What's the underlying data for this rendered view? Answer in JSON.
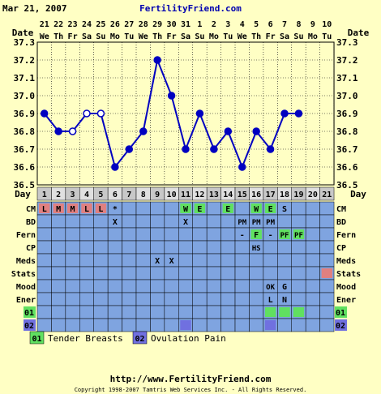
{
  "header": {
    "date": "Mar 21, 2007",
    "site": "FertilityFriend.com"
  },
  "axis_labels": {
    "date": "Date",
    "day": "Day"
  },
  "chart_data": {
    "type": "line",
    "x_dates": [
      "21",
      "22",
      "23",
      "24",
      "25",
      "26",
      "27",
      "28",
      "29",
      "30",
      "31",
      "1",
      "2",
      "3",
      "4",
      "5",
      "6",
      "7",
      "8",
      "9",
      "10"
    ],
    "x_weekdays": [
      "We",
      "Th",
      "Fr",
      "Sa",
      "Su",
      "Mo",
      "Tu",
      "We",
      "Th",
      "Fr",
      "Sa",
      "Su",
      "Mo",
      "Tu",
      "We",
      "Th",
      "Fr",
      "Sa",
      "Su",
      "Mo",
      "Tu"
    ],
    "days": [
      "1",
      "2",
      "3",
      "4",
      "5",
      "6",
      "7",
      "8",
      "9",
      "10",
      "11",
      "12",
      "13",
      "14",
      "15",
      "16",
      "17",
      "18",
      "19",
      "20",
      "21"
    ],
    "temps": [
      36.9,
      36.8,
      36.8,
      36.9,
      36.9,
      36.6,
      36.7,
      36.8,
      37.2,
      37.0,
      36.7,
      36.9,
      36.7,
      36.8,
      36.6,
      36.8,
      36.7,
      36.9,
      36.9,
      null,
      null
    ],
    "open_points": [
      2,
      3,
      4
    ],
    "connected_to_next": [
      true,
      true,
      true,
      true,
      true,
      true,
      true,
      true,
      true,
      true,
      true,
      true,
      true,
      true,
      true,
      true,
      true,
      true,
      false,
      false,
      false
    ],
    "y_ticks": [
      "36.5",
      "36.6",
      "36.7",
      "36.8",
      "36.9",
      "37.0",
      "37.1",
      "37.2",
      "37.3"
    ],
    "ylim": [
      36.5,
      37.3
    ],
    "grid": true,
    "line_color": "#0000c0"
  },
  "rows": [
    {
      "label": "CM",
      "cells": {
        "0": {
          "t": "L",
          "bg": "#e08080"
        },
        "1": {
          "t": "M",
          "bg": "#e08080"
        },
        "2": {
          "t": "M",
          "bg": "#e08080"
        },
        "3": {
          "t": "L",
          "bg": "#e08080"
        },
        "4": {
          "t": "L",
          "bg": "#e08080"
        },
        "5": {
          "t": "*"
        },
        "10": {
          "t": "W",
          "bg": "#60e060"
        },
        "11": {
          "t": "E",
          "bg": "#60e060"
        },
        "13": {
          "t": "E",
          "bg": "#60e060"
        },
        "15": {
          "t": "W",
          "bg": "#60e060"
        },
        "16": {
          "t": "E",
          "bg": "#60e060"
        },
        "17": {
          "t": "S"
        }
      }
    },
    {
      "label": "BD",
      "cells": {
        "5": {
          "t": "X"
        },
        "10": {
          "t": "X"
        },
        "14": {
          "t": "PM"
        },
        "15": {
          "t": "PM"
        },
        "16": {
          "t": "PM"
        }
      }
    },
    {
      "label": "Fern",
      "cells": {
        "14": {
          "t": "-"
        },
        "15": {
          "t": "F",
          "bg": "#60e060"
        },
        "16": {
          "t": "-"
        },
        "17": {
          "t": "PF",
          "bg": "#60e060"
        },
        "18": {
          "t": "PF",
          "bg": "#60e060"
        }
      }
    },
    {
      "label": "CP",
      "cells": {
        "15": {
          "t": "HS"
        }
      }
    },
    {
      "label": "Meds",
      "cells": {
        "8": {
          "t": "X"
        },
        "9": {
          "t": "X"
        }
      }
    },
    {
      "label": "Stats",
      "cells": {
        "20": {
          "t": "",
          "bg": "#e08080"
        }
      }
    },
    {
      "label": "Mood",
      "cells": {
        "16": {
          "t": "OK"
        },
        "17": {
          "t": "G"
        }
      }
    },
    {
      "label": "Ener",
      "cells": {
        "16": {
          "t": "L"
        },
        "17": {
          "t": "N"
        }
      }
    },
    {
      "label": "01",
      "label_bg": "#60e060",
      "cells": {
        "16": {
          "t": "",
          "bg": "#60e060"
        },
        "17": {
          "t": "",
          "bg": "#60e060"
        },
        "18": {
          "t": "",
          "bg": "#60e060"
        }
      }
    },
    {
      "label": "02",
      "label_bg": "#7070e0",
      "cells": {
        "10": {
          "t": "",
          "bg": "#7070e0"
        },
        "16": {
          "t": "",
          "bg": "#7070e0"
        }
      }
    }
  ],
  "legend": [
    {
      "code": "01",
      "text": "Tender Breasts",
      "color": "#60e060"
    },
    {
      "code": "02",
      "text": "Ovulation Pain",
      "color": "#7070e0"
    }
  ],
  "footer": {
    "url": "http://www.FertilityFriend.com",
    "copyright": "Copyright 1998-2007 Tamtris Web Services Inc. - All Rights Reserved."
  },
  "colors": {
    "background": "#ffffc4",
    "grid_blue": "#7fa4e0",
    "grid_line": "#000000"
  }
}
